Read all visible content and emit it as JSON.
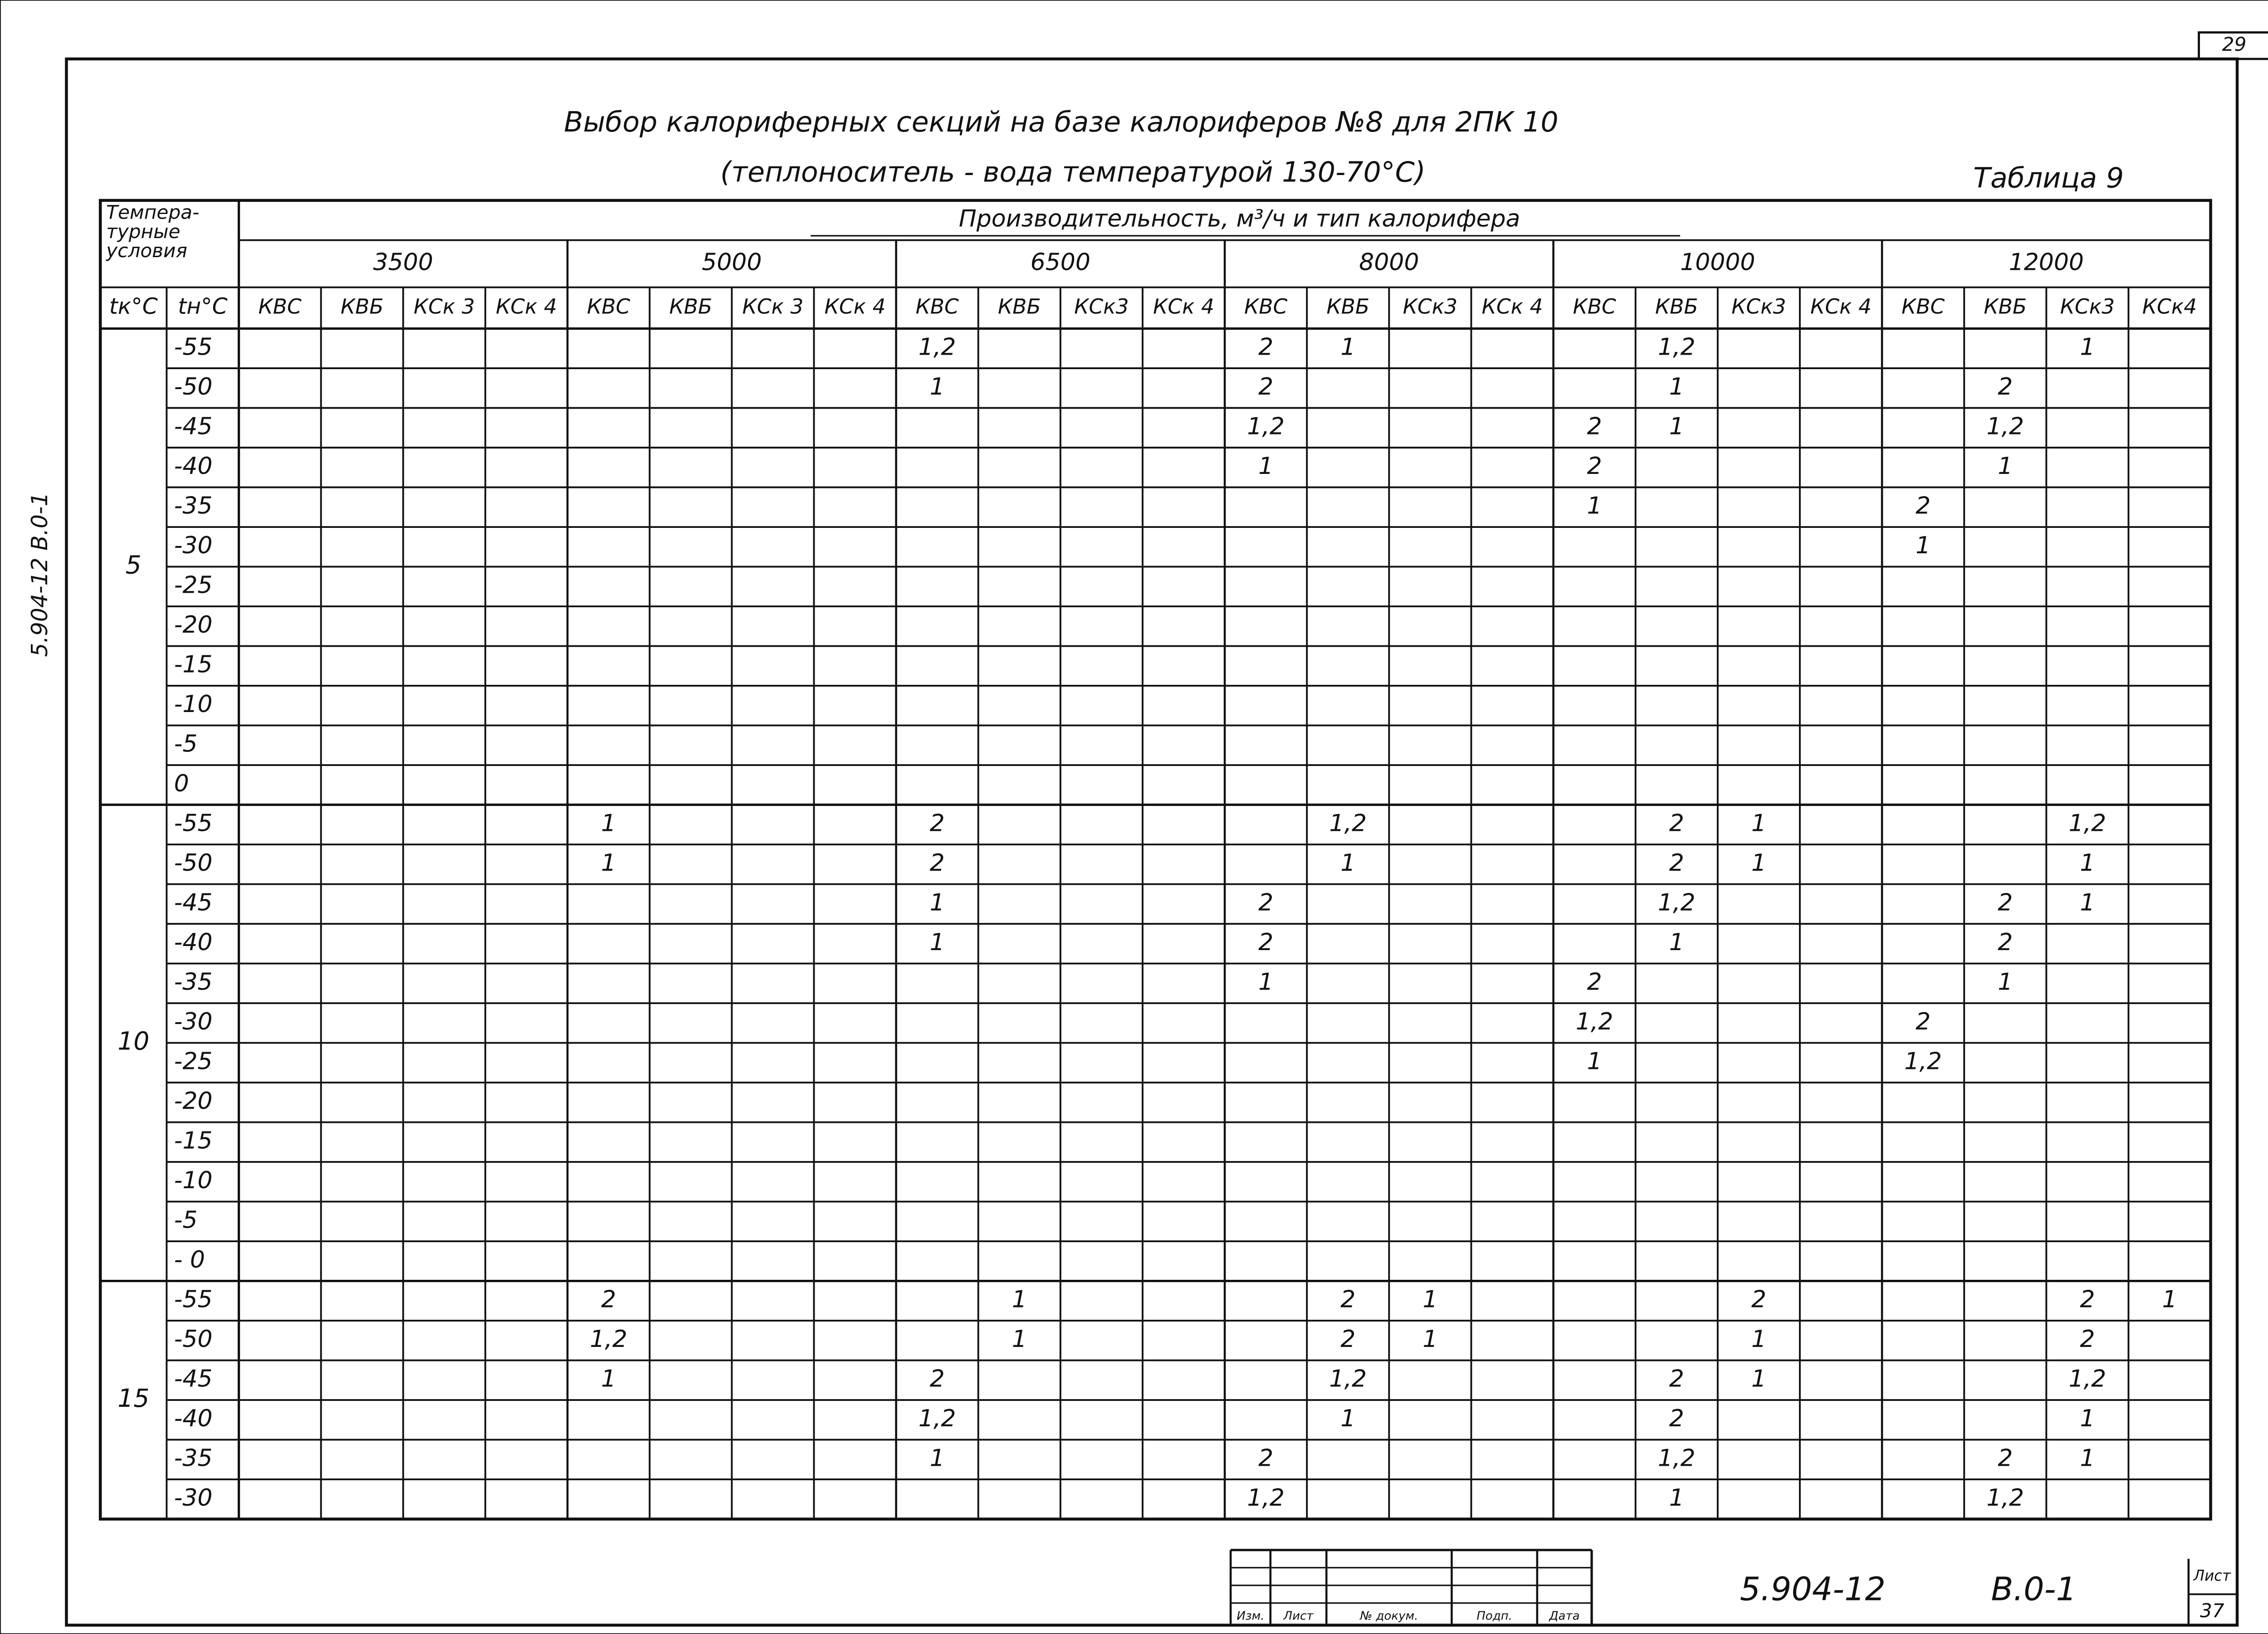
{
  "page_number": "29",
  "header": {
    "title": "Выбор калориферных секций на базе калориферов №8 для 2ПК 10",
    "subtitle": "(теплоноситель - вода температурой 130-70°С)",
    "table_label": "Таблица 9"
  },
  "table": {
    "conditions_header": [
      "Темпера-",
      "турные",
      "условия"
    ],
    "tk_header": "tк°С",
    "tn_header": "tн°С",
    "capacity_header": "Производительность, м³/ч и тип калорифера",
    "groups": [
      {
        "flow": "3500",
        "types": [
          "КВС",
          "КВБ",
          "КСк 3",
          "КСк 4"
        ]
      },
      {
        "flow": "5000",
        "types": [
          "КВС",
          "КВБ",
          "КСк 3",
          "КСк 4"
        ]
      },
      {
        "flow": "6500",
        "types": [
          "КВС",
          "КВБ",
          "КСк3",
          "КСк 4"
        ]
      },
      {
        "flow": "8000",
        "types": [
          "КВС",
          "КВБ",
          "КСк3",
          "КСк 4"
        ]
      },
      {
        "flow": "10000",
        "types": [
          "КВС",
          "КВБ",
          "КСк3",
          "КСк 4"
        ]
      },
      {
        "flow": "12000",
        "types": [
          "КВС",
          "КВБ",
          "КСк3",
          "КСк4"
        ]
      }
    ],
    "sections": [
      {
        "tk": "5",
        "rows": [
          {
            "tn": "-55",
            "cells": {
              "8": "1,2",
              "12": "2",
              "13": "1",
              "17": "1,2",
              "22": "1"
            }
          },
          {
            "tn": "-50",
            "cells": {
              "8": "1",
              "12": "2",
              "17": "1",
              "21": "2"
            }
          },
          {
            "tn": "-45",
            "cells": {
              "12": "1,2",
              "16": "2",
              "17": "1",
              "21": "1,2"
            }
          },
          {
            "tn": "-40",
            "cells": {
              "12": "1",
              "16": "2",
              "21": "1"
            }
          },
          {
            "tn": "-35",
            "cells": {
              "16": "1",
              "20": "2"
            }
          },
          {
            "tn": "-30",
            "cells": {
              "20": "1"
            }
          },
          {
            "tn": "-25",
            "cells": {}
          },
          {
            "tn": "-20",
            "cells": {}
          },
          {
            "tn": "-15",
            "cells": {}
          },
          {
            "tn": "-10",
            "cells": {}
          },
          {
            "tn": "-5",
            "cells": {}
          },
          {
            "tn": "0",
            "cells": {}
          }
        ]
      },
      {
        "tk": "10",
        "rows": [
          {
            "tn": "-55",
            "cells": {
              "4": "1",
              "8": "2",
              "13": "1,2",
              "17": "2",
              "18": "1",
              "22": "1,2"
            }
          },
          {
            "tn": "-50",
            "cells": {
              "4": "1",
              "8": "2",
              "13": "1",
              "17": "2",
              "18": "1",
              "22": "1"
            }
          },
          {
            "tn": "-45",
            "cells": {
              "8": "1",
              "12": "2",
              "17": "1,2",
              "21": "2",
              "22": "1"
            }
          },
          {
            "tn": "-40",
            "cells": {
              "8": "1",
              "12": "2",
              "17": "1",
              "21": "2"
            }
          },
          {
            "tn": "-35",
            "cells": {
              "12": "1",
              "16": "2",
              "21": "1"
            }
          },
          {
            "tn": "-30",
            "cells": {
              "16": "1,2",
              "20": "2"
            }
          },
          {
            "tn": "-25",
            "cells": {
              "16": "1",
              "20": "1,2"
            }
          },
          {
            "tn": "-20",
            "cells": {}
          },
          {
            "tn": "-15",
            "cells": {}
          },
          {
            "tn": "-10",
            "cells": {}
          },
          {
            "tn": "-5",
            "cells": {}
          },
          {
            "tn": "- 0",
            "cells": {}
          }
        ]
      },
      {
        "tk": "15",
        "rows": [
          {
            "tn": "-55",
            "cells": {
              "4": "2",
              "9": "1",
              "13": "2",
              "14": "1",
              "18": "2",
              "22": "2",
              "23": "1"
            }
          },
          {
            "tn": "-50",
            "cells": {
              "4": "1,2",
              "9": "1",
              "13": "2",
              "14": "1",
              "18": "1",
              "22": "2"
            }
          },
          {
            "tn": "-45",
            "cells": {
              "4": "1",
              "8": "2",
              "13": "1,2",
              "17": "2",
              "18": "1",
              "22": "1,2"
            }
          },
          {
            "tn": "-40",
            "cells": {
              "8": "1,2",
              "13": "1",
              "17": "2",
              "22": "1"
            }
          },
          {
            "tn": "-35",
            "cells": {
              "8": "1",
              "12": "2",
              "17": "1,2",
              "21": "2",
              "22": "1"
            }
          },
          {
            "tn": "-30",
            "cells": {
              "12": "1,2",
              "17": "1",
              "21": "1,2"
            }
          }
        ]
      }
    ]
  },
  "footer": {
    "stamp": [
      "Изм.",
      "Лист",
      "№ докум.",
      "Подп.",
      "Дата"
    ],
    "doc_code": "5.904-12",
    "doc_part": "В.0-1",
    "sheet_label": "Лист",
    "sheet_number": "37",
    "side_code": "5.904-12 В.0-1"
  }
}
